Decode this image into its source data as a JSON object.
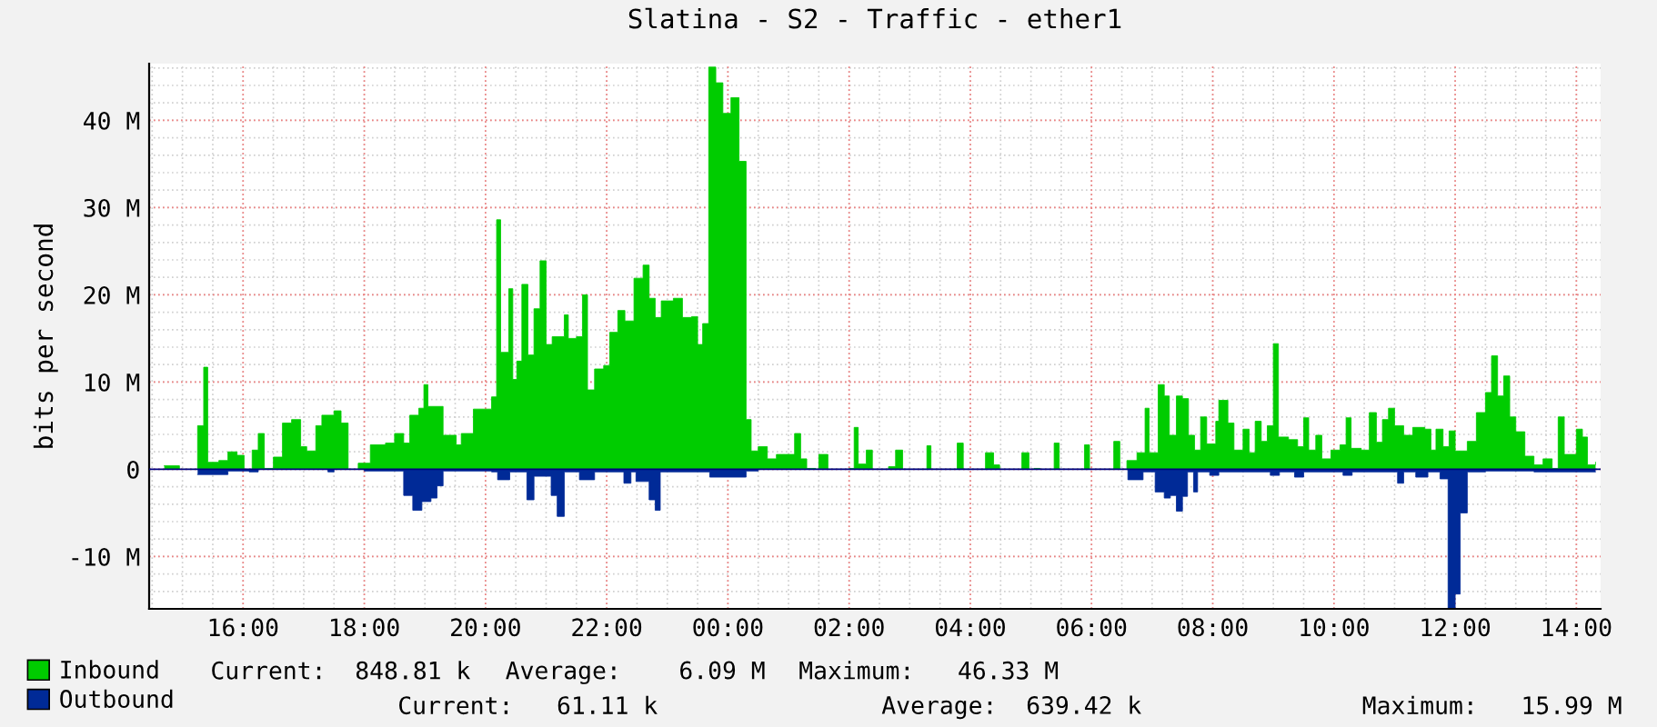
{
  "chart_data": {
    "type": "area",
    "title": "Slatina - S2 - Traffic - ether1",
    "ylabel": "bits per second",
    "xlim": [
      "2000-01-01T14:27",
      "2000-01-02T14:24"
    ],
    "ylim": [
      -16,
      46.5
    ],
    "xticks": [
      {
        "value": "2000-01-01T16:00",
        "label": "16:00"
      },
      {
        "value": "2000-01-01T18:00",
        "label": "18:00"
      },
      {
        "value": "2000-01-01T20:00",
        "label": "20:00"
      },
      {
        "value": "2000-01-01T22:00",
        "label": "22:00"
      },
      {
        "value": "2000-01-02T00:00",
        "label": "00:00"
      },
      {
        "value": "2000-01-02T02:00",
        "label": "02:00"
      },
      {
        "value": "2000-01-02T04:00",
        "label": "04:00"
      },
      {
        "value": "2000-01-02T06:00",
        "label": "06:00"
      },
      {
        "value": "2000-01-02T08:00",
        "label": "08:00"
      },
      {
        "value": "2000-01-02T10:00",
        "label": "10:00"
      },
      {
        "value": "2000-01-02T12:00",
        "label": "12:00"
      },
      {
        "value": "2000-01-02T14:00",
        "label": "14:00"
      }
    ],
    "yticks": [
      {
        "value": -10,
        "label": "-10 M"
      },
      {
        "value": 0,
        "label": "0"
      },
      {
        "value": 10,
        "label": "10 M"
      },
      {
        "value": 20,
        "label": "20 M"
      },
      {
        "value": 30,
        "label": "30 M"
      },
      {
        "value": 40,
        "label": "40 M"
      }
    ],
    "grid": true,
    "legend": "bottom left",
    "ref_lines": [
      {
        "axis": "y",
        "value": 0,
        "color": "#00007f"
      }
    ],
    "series": [
      {
        "name": "Inbound",
        "color": "#00cc00",
        "x": [
          "2000-01-01T14:42",
          "2000-01-01T14:57",
          "2000-01-01T15:15",
          "2000-01-01T15:21",
          "2000-01-01T15:25",
          "2000-01-01T15:36",
          "2000-01-01T15:45",
          "2000-01-01T15:54",
          "2000-01-01T16:01",
          "2000-01-01T16:09",
          "2000-01-01T16:15",
          "2000-01-01T16:21",
          "2000-01-01T16:30",
          "2000-01-01T16:39",
          "2000-01-01T16:48",
          "2000-01-01T16:57",
          "2000-01-01T17:03",
          "2000-01-01T17:12",
          "2000-01-01T17:18",
          "2000-01-01T17:30",
          "2000-01-01T17:37",
          "2000-01-01T17:44",
          "2000-01-01T17:54",
          "2000-01-01T18:06",
          "2000-01-01T18:21",
          "2000-01-01T18:30",
          "2000-01-01T18:39",
          "2000-01-01T18:45",
          "2000-01-01T18:54",
          "2000-01-01T18:59",
          "2000-01-01T19:03",
          "2000-01-01T19:18",
          "2000-01-01T19:31",
          "2000-01-01T19:36",
          "2000-01-01T19:48",
          "2000-01-01T20:00",
          "2000-01-01T20:06",
          "2000-01-01T20:11",
          "2000-01-01T20:15",
          "2000-01-01T20:23",
          "2000-01-01T20:27",
          "2000-01-01T20:31",
          "2000-01-01T20:36",
          "2000-01-01T20:42",
          "2000-01-01T20:48",
          "2000-01-01T20:54",
          "2000-01-01T21:00",
          "2000-01-01T21:06",
          "2000-01-01T21:18",
          "2000-01-01T21:22",
          "2000-01-01T21:30",
          "2000-01-01T21:36",
          "2000-01-01T21:41",
          "2000-01-01T21:48",
          "2000-01-01T21:57",
          "2000-01-01T22:03",
          "2000-01-01T22:11",
          "2000-01-01T22:18",
          "2000-01-01T22:27",
          "2000-01-01T22:36",
          "2000-01-01T22:42",
          "2000-01-01T22:48",
          "2000-01-01T22:54",
          "2000-01-01T23:06",
          "2000-01-01T23:15",
          "2000-01-01T23:24",
          "2000-01-01T23:30",
          "2000-01-01T23:35",
          "2000-01-01T23:41",
          "2000-01-01T23:48",
          "2000-01-01T23:55",
          "2000-01-02T00:03",
          "2000-01-02T00:11",
          "2000-01-02T00:18",
          "2000-01-02T00:23",
          "2000-01-02T00:30",
          "2000-01-02T00:39",
          "2000-01-02T00:48",
          "2000-01-02T00:57",
          "2000-01-02T01:06",
          "2000-01-02T01:12",
          "2000-01-02T01:18",
          "2000-01-02T01:27",
          "2000-01-02T01:30",
          "2000-01-02T01:39",
          "2000-01-02T02:00",
          "2000-01-02T02:05",
          "2000-01-02T02:09",
          "2000-01-02T02:17",
          "2000-01-02T02:23",
          "2000-01-02T02:39",
          "2000-01-02T02:46",
          "2000-01-02T02:53",
          "2000-01-02T03:17",
          "2000-01-02T03:21",
          "2000-01-02T03:47",
          "2000-01-02T03:53",
          "2000-01-02T04:15",
          "2000-01-02T04:23",
          "2000-01-02T04:29",
          "2000-01-02T04:51",
          "2000-01-02T04:58",
          "2000-01-02T05:03",
          "2000-01-02T05:09",
          "2000-01-02T05:23",
          "2000-01-02T05:28",
          "2000-01-02T05:53",
          "2000-01-02T05:58",
          "2000-01-02T06:22",
          "2000-01-02T06:28",
          "2000-01-02T06:35",
          "2000-01-02T06:45",
          "2000-01-02T06:53",
          "2000-01-02T06:57",
          "2000-01-02T07:06",
          "2000-01-02T07:12",
          "2000-01-02T07:17",
          "2000-01-02T07:24",
          "2000-01-02T07:30",
          "2000-01-02T07:36",
          "2000-01-02T07:42",
          "2000-01-02T07:48",
          "2000-01-02T07:54",
          "2000-01-02T08:03",
          "2000-01-02T08:06",
          "2000-01-02T08:15",
          "2000-01-02T08:21",
          "2000-01-02T08:30",
          "2000-01-02T08:36",
          "2000-01-02T08:42",
          "2000-01-02T08:48",
          "2000-01-02T08:54",
          "2000-01-02T09:00",
          "2000-01-02T09:05",
          "2000-01-02T09:15",
          "2000-01-02T09:24",
          "2000-01-02T09:30",
          "2000-01-02T09:35",
          "2000-01-02T09:42",
          "2000-01-02T09:48",
          "2000-01-02T09:57",
          "2000-01-02T10:06",
          "2000-01-02T10:12",
          "2000-01-02T10:17",
          "2000-01-02T10:27",
          "2000-01-02T10:35",
          "2000-01-02T10:42",
          "2000-01-02T10:48",
          "2000-01-02T10:54",
          "2000-01-02T11:00",
          "2000-01-02T11:09",
          "2000-01-02T11:18",
          "2000-01-02T11:30",
          "2000-01-02T11:36",
          "2000-01-02T11:41",
          "2000-01-02T11:48",
          "2000-01-02T11:54",
          "2000-01-02T12:00",
          "2000-01-02T12:12",
          "2000-01-02T12:21",
          "2000-01-02T12:30",
          "2000-01-02T12:36",
          "2000-01-02T12:42",
          "2000-01-02T12:48",
          "2000-01-02T12:54",
          "2000-01-02T13:00",
          "2000-01-02T13:09",
          "2000-01-02T13:18",
          "2000-01-02T13:27",
          "2000-01-02T13:36",
          "2000-01-02T13:42",
          "2000-01-02T13:48",
          "2000-01-02T14:00",
          "2000-01-02T14:06",
          "2000-01-02T14:11",
          "2000-01-02T14:19"
        ],
        "values": [
          0.4,
          0,
          5,
          11.7,
          0.8,
          1,
          2,
          1.6,
          0,
          2.2,
          4.1,
          0.1,
          1.4,
          5.3,
          5.7,
          2.6,
          2.1,
          5,
          6.2,
          6.7,
          5.3,
          0,
          0.7,
          2.8,
          3,
          4.1,
          3,
          6.2,
          7,
          9.7,
          7.2,
          3.9,
          2.8,
          4.1,
          6.9,
          6.9,
          8.3,
          28.6,
          13.4,
          20.7,
          10.3,
          12.4,
          21.2,
          13.1,
          18.4,
          23.9,
          14.3,
          15.2,
          17.7,
          15,
          15.2,
          20,
          9.1,
          11.5,
          11.9,
          15.7,
          18.2,
          17,
          21.9,
          23.4,
          19.6,
          17.4,
          19.3,
          19.6,
          17.4,
          17.5,
          14.3,
          16.7,
          46.1,
          44.3,
          40.8,
          42.6,
          35.3,
          5.7,
          2.1,
          2.6,
          1.2,
          1.7,
          1.7,
          4.1,
          1.2,
          0.1,
          0,
          1.7,
          0,
          0.1,
          4.8,
          0.6,
          2.2,
          0,
          0.3,
          2.2,
          0,
          2.7,
          0,
          3,
          0,
          1.9,
          0.5,
          0,
          1.9,
          0,
          0.1,
          0,
          3,
          0,
          2.8,
          0,
          3.2,
          0,
          1,
          1.9,
          7,
          1.9,
          9.7,
          8.4,
          3.9,
          8.4,
          8.1,
          3.9,
          2.2,
          6,
          2.9,
          5.5,
          7.9,
          5.3,
          2.2,
          4.6,
          1.9,
          5.5,
          3.2,
          5,
          14.4,
          3.7,
          3.4,
          2.6,
          5.9,
          2.2,
          3.9,
          1.2,
          2.2,
          2.8,
          5.9,
          2.4,
          2.2,
          6.5,
          3.1,
          5.7,
          7,
          5,
          3.9,
          4.8,
          4.6,
          2.2,
          4.6,
          2.6,
          4.4,
          2.1,
          3.2,
          6.5,
          8.8,
          13,
          8.4,
          10.7,
          6,
          4.3,
          1.5,
          0.5,
          1.2,
          0.1,
          6,
          1.7,
          4.6,
          3.7,
          0.5,
          0.8
        ]
      },
      {
        "name": "Outbound",
        "color": "#002a97",
        "x": [
          "2000-01-01T15:15",
          "2000-01-01T15:45",
          "2000-01-01T16:06",
          "2000-01-01T16:15",
          "2000-01-01T17:24",
          "2000-01-01T17:30",
          "2000-01-01T18:00",
          "2000-01-01T18:39",
          "2000-01-01T18:48",
          "2000-01-01T18:57",
          "2000-01-01T19:06",
          "2000-01-01T19:12",
          "2000-01-01T19:18",
          "2000-01-01T20:06",
          "2000-01-01T20:12",
          "2000-01-01T20:24",
          "2000-01-01T20:41",
          "2000-01-01T20:48",
          "2000-01-01T21:05",
          "2000-01-01T21:11",
          "2000-01-01T21:18",
          "2000-01-01T21:33",
          "2000-01-01T21:48",
          "2000-01-01T22:17",
          "2000-01-01T22:24",
          "2000-01-01T22:29",
          "2000-01-01T22:42",
          "2000-01-01T22:48",
          "2000-01-01T22:53",
          "2000-01-01T23:42",
          "2000-01-02T00:18",
          "2000-01-02T00:30",
          "2000-01-02T06:36",
          "2000-01-02T06:51",
          "2000-01-02T07:03",
          "2000-01-02T07:12",
          "2000-01-02T07:18",
          "2000-01-02T07:24",
          "2000-01-02T07:30",
          "2000-01-02T07:35",
          "2000-01-02T07:41",
          "2000-01-02T07:45",
          "2000-01-02T07:57",
          "2000-01-02T08:06",
          "2000-01-02T08:57",
          "2000-01-02T09:06",
          "2000-01-02T09:21",
          "2000-01-02T09:30",
          "2000-01-02T10:09",
          "2000-01-02T10:18",
          "2000-01-02T11:03",
          "2000-01-02T11:09",
          "2000-01-02T11:21",
          "2000-01-02T11:33",
          "2000-01-02T11:45",
          "2000-01-02T11:53",
          "2000-01-02T12:00",
          "2000-01-02T12:05",
          "2000-01-02T12:12",
          "2000-01-02T12:30",
          "2000-01-02T13:18",
          "2000-01-02T14:19"
        ],
        "values": [
          -0.6,
          -0.2,
          -0.3,
          0,
          -0.3,
          0,
          -0.2,
          -3,
          -4.7,
          -3.7,
          -3.3,
          -1.9,
          -0.2,
          -0.3,
          -1.2,
          -0.3,
          -3.5,
          -0.8,
          -3,
          -5.4,
          -0.3,
          -1.2,
          -0.3,
          -1.6,
          -0.3,
          -1.4,
          -3.5,
          -4.7,
          -0.3,
          -0.9,
          -0.2,
          0,
          -1.2,
          -0.3,
          -2.6,
          -3.3,
          -3,
          -4.8,
          -3.1,
          -0.3,
          -2.6,
          -0.3,
          -0.7,
          -0.3,
          -0.7,
          -0.3,
          -0.9,
          -0.3,
          -0.7,
          -0.3,
          -1.6,
          -0.3,
          -0.9,
          -0.3,
          -1.1,
          -15.9,
          -14.3,
          -5,
          -0.3,
          -0.2,
          -0.3,
          -0.3
        ]
      }
    ],
    "annotations": [
      "Current:  848.81 k",
      "Average:    6.09 M",
      "Maximum:   46.33 M",
      "Current:   61.11 k",
      "Average:  639.42 k",
      "Maximum:   15.99 M"
    ]
  }
}
